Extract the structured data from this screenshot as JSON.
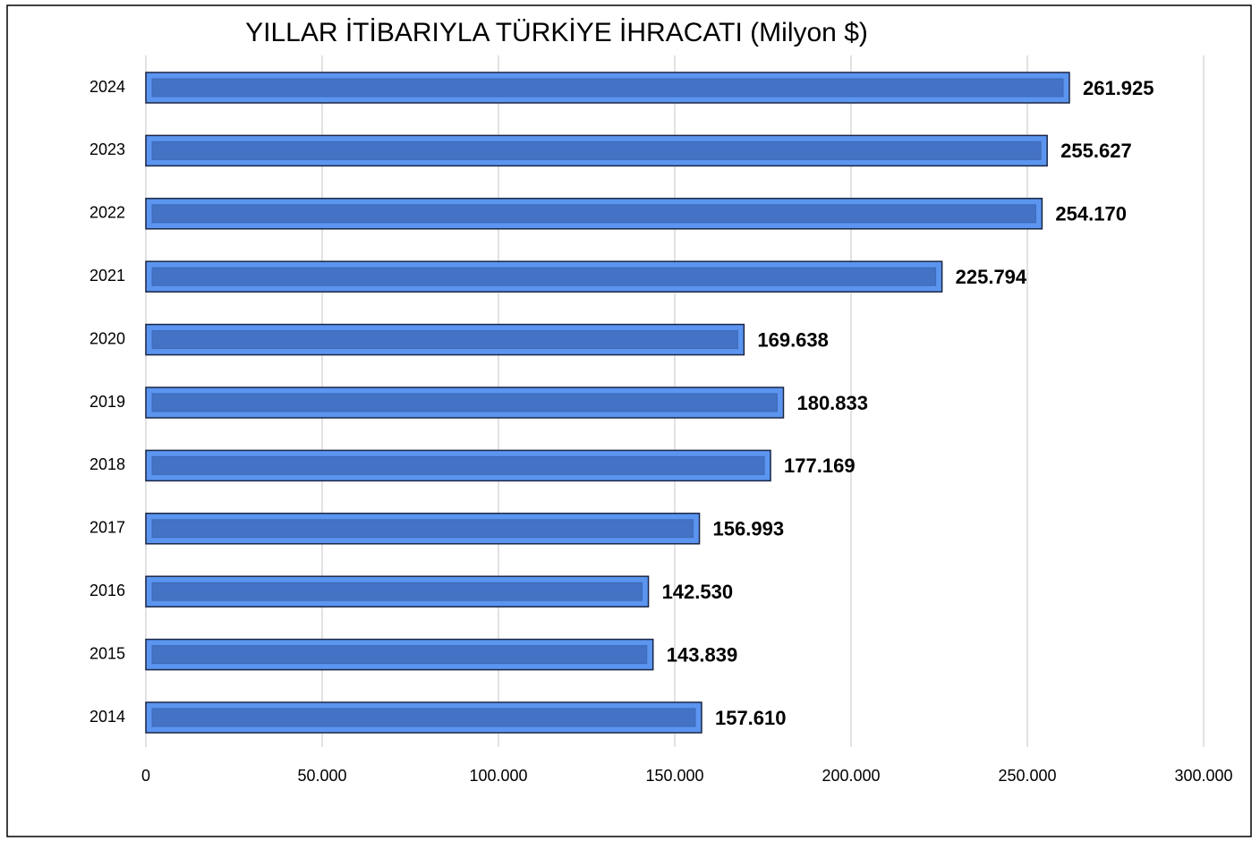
{
  "chart_data": {
    "type": "bar",
    "orientation": "horizontal",
    "title": "YILLAR İTİBARIYLA TÜRKİYE İHRACATI (Milyon $)",
    "categories": [
      "2024",
      "2023",
      "2022",
      "2021",
      "2020",
      "2019",
      "2018",
      "2017",
      "2016",
      "2015",
      "2014"
    ],
    "values": [
      261925,
      255627,
      254170,
      225794,
      169638,
      180833,
      177169,
      156993,
      142530,
      143839,
      157610
    ],
    "value_labels": [
      "261.925",
      "255.627",
      "254.170",
      "225.794",
      "169.638",
      "180.833",
      "177.169",
      "156.993",
      "142.530",
      "143.839",
      "157.610"
    ],
    "color": "#4472c4",
    "xlim": [
      0,
      300000
    ],
    "xticks": [
      0,
      {
        "value": 50000,
        "label": "50.000"
      },
      {
        "value": 100000,
        "label": "100.000"
      },
      {
        "value": 150000,
        "label": "150.000"
      },
      {
        "value": 200000,
        "label": "200.000"
      },
      {
        "value": 250000,
        "label": "250.000"
      },
      {
        "value": 300000,
        "label": "300.000"
      }
    ],
    "grid": true
  }
}
